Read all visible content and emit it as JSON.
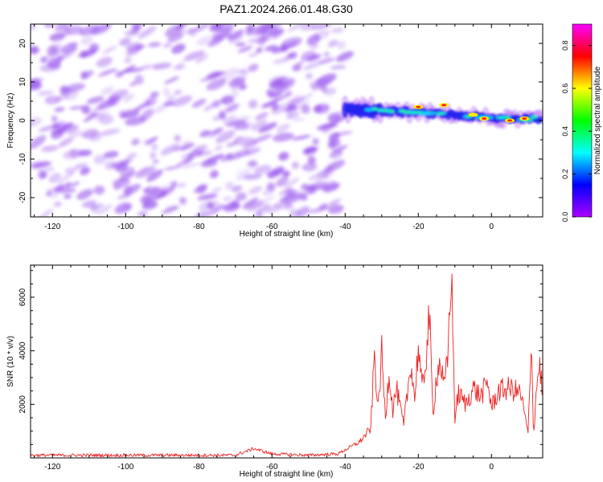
{
  "title": "PAZ1.2024.266.01.48.G30",
  "chart_data": [
    {
      "type": "heatmap",
      "xlabel": "Height of straight line (km)",
      "ylabel": "Frequency (Hz)",
      "xlim": [
        -126,
        14
      ],
      "ylim": [
        -25,
        25
      ],
      "xticks": [
        -120,
        -100,
        -80,
        -60,
        -40,
        -20,
        0
      ],
      "yticks": [
        20,
        10,
        0,
        -10,
        -20
      ],
      "colorbar": {
        "label": "Normalized spectral amplitude",
        "range": [
          0.0,
          0.9
        ],
        "ticks": [
          0.0,
          0.2,
          0.4,
          0.6,
          0.8
        ],
        "colors": [
          "#ff00ff",
          "#ff0000",
          "#ffff00",
          "#00ff00",
          "#00ffff",
          "#0000ff",
          "#aa00ff"
        ]
      },
      "noise_region": {
        "x_range": [
          -126,
          -40
        ],
        "y_range": [
          -25,
          25
        ],
        "amplitude": "0.0-0.1",
        "color": "#9955ee"
      },
      "signal_track": [
        {
          "x": -40,
          "y": 3.0
        },
        {
          "x": -30,
          "y": 2.5
        },
        {
          "x": -20,
          "y": 2.0
        },
        {
          "x": -10,
          "y": 1.5
        },
        {
          "x": 0,
          "y": 0.5
        },
        {
          "x": 13,
          "y": 0.5
        }
      ],
      "peaks": [
        {
          "x": -20,
          "y": 3.5,
          "amplitude": 0.9
        },
        {
          "x": -13,
          "y": 4.0,
          "amplitude": 0.9
        },
        {
          "x": -5,
          "y": 1.5,
          "amplitude": 0.6
        },
        {
          "x": -2,
          "y": 0.5,
          "amplitude": 0.9
        },
        {
          "x": 5,
          "y": 0.0,
          "amplitude": 0.9
        },
        {
          "x": 9,
          "y": 0.5,
          "amplitude": 0.9
        }
      ]
    },
    {
      "type": "line",
      "xlabel": "Height of straight line (km)",
      "ylabel": "SNR (10 * v/v)",
      "xlim": [
        -126,
        14
      ],
      "ylim": [
        0,
        7200
      ],
      "xticks": [
        -120,
        -100,
        -80,
        -60,
        -40,
        -20,
        0
      ],
      "yticks": [
        2000,
        4000,
        6000
      ],
      "color": "#ee2222",
      "x": [
        -126,
        -110,
        -90,
        -70,
        -65,
        -60,
        -50,
        -42,
        -40,
        -36,
        -33,
        -32,
        -31,
        -30,
        -29,
        -28,
        -27,
        -26,
        -24,
        -22,
        -21,
        -20,
        -19,
        -18,
        -17,
        -16,
        -15,
        -14,
        -13,
        -12,
        -11,
        -10,
        -9,
        -7,
        -5,
        -3,
        -1,
        0,
        2,
        5,
        8,
        10,
        11,
        11.5,
        12,
        13,
        13.5,
        14
      ],
      "y": [
        100,
        100,
        100,
        100,
        350,
        150,
        100,
        150,
        300,
        600,
        1100,
        3900,
        1800,
        3900,
        1500,
        3300,
        1800,
        2600,
        1200,
        3600,
        2200,
        4200,
        2500,
        3600,
        5300,
        1600,
        3100,
        3600,
        2600,
        3600,
        7100,
        1500,
        2400,
        2000,
        2600,
        2300,
        2800,
        1900,
        2500,
        2600,
        2400,
        900,
        4300,
        700,
        2100,
        3500,
        3100,
        2000
      ]
    }
  ]
}
